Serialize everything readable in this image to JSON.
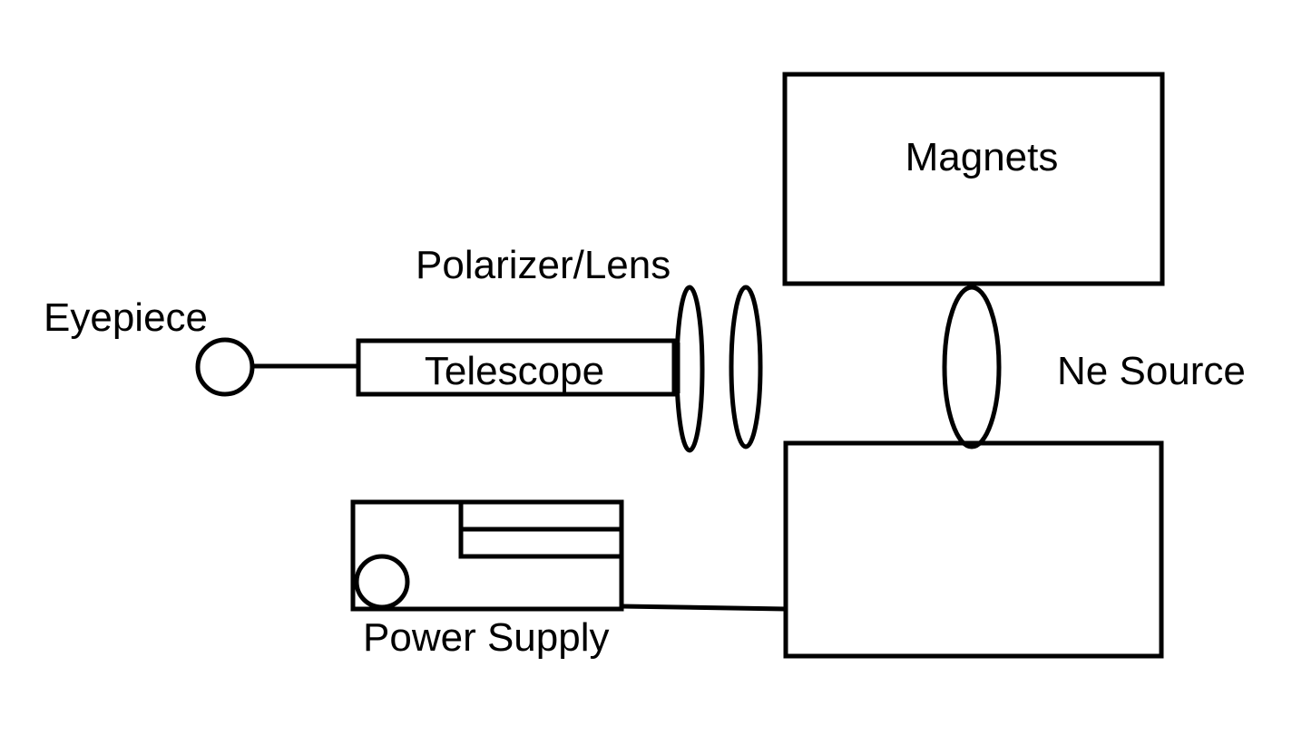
{
  "labels": {
    "magnets": "Magnets",
    "polarizer_lens": "Polarizer/Lens",
    "eyepiece": "Eyepiece",
    "telescope": "Telescope",
    "ne_source": "Ne Source",
    "power_supply": "Power Supply"
  },
  "colors": {
    "stroke": "#000000",
    "background": "#ffffff"
  }
}
